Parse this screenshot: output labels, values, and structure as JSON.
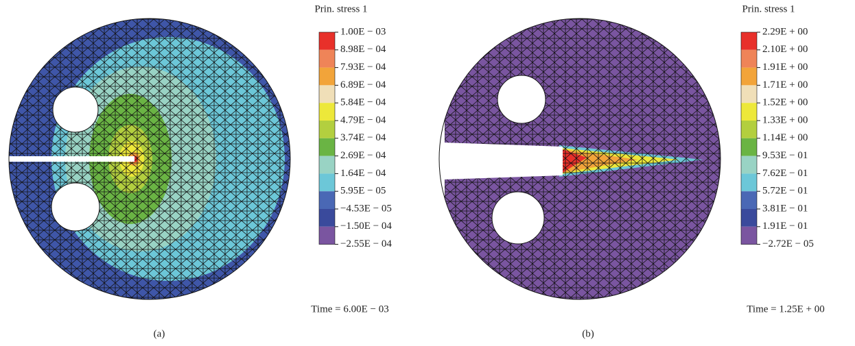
{
  "colors": [
    "#e8302a",
    "#ef8458",
    "#f2a43a",
    "#f0dfb8",
    "#ede83a",
    "#b3cf3f",
    "#6ab444",
    "#99d3c4",
    "#6cc7d8",
    "#4a68b5",
    "#3a4a9c",
    "#7a55a0"
  ],
  "panels": [
    {
      "legend_title": "Prin. stress 1",
      "levels": [
        "1.00E − 03",
        "8.98E − 04",
        "7.93E − 04",
        "6.89E − 04",
        "5.84E − 04",
        "4.79E − 04",
        "3.74E − 04",
        "2.69E − 04",
        "1.64E − 04",
        "5.95E − 05",
        "−4.53E − 05",
        "−1.50E − 04",
        "−2.55E − 04"
      ],
      "time": "Time = 6.00E − 03",
      "caption": "(a)"
    },
    {
      "legend_title": "Prin. stress 1",
      "levels": [
        "2.29E + 00",
        "2.10E + 00",
        "1.91E + 00",
        "1.71E + 00",
        "1.52E + 00",
        "1.33E + 00",
        "1.14E + 00",
        "9.53E − 01",
        "7.62E − 01",
        "5.72E − 01",
        "3.81E − 01",
        "1.91E − 01",
        "−2.72E − 05"
      ],
      "time": "Time = 1.25E + 00",
      "caption": "(b)"
    }
  ]
}
